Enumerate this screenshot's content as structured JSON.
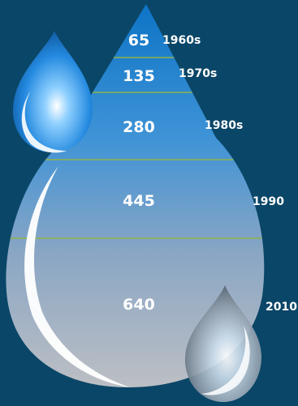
{
  "segments": [
    {
      "value": "65",
      "decade": "1960s"
    },
    {
      "value": "135",
      "decade": "1970s"
    },
    {
      "value": "280",
      "decade": "1980s"
    },
    {
      "value": "445",
      "decade": "1990"
    },
    {
      "value": "640",
      "decade": "2010"
    }
  ],
  "colors": {
    "background": "#0a4667",
    "drop_top": "#1179c9",
    "drop_bottom": "#b8bcc3",
    "divider": "#8fb24a",
    "small_drop": "#2a8fe0",
    "small_drop_gray": "#8f9aa6"
  }
}
